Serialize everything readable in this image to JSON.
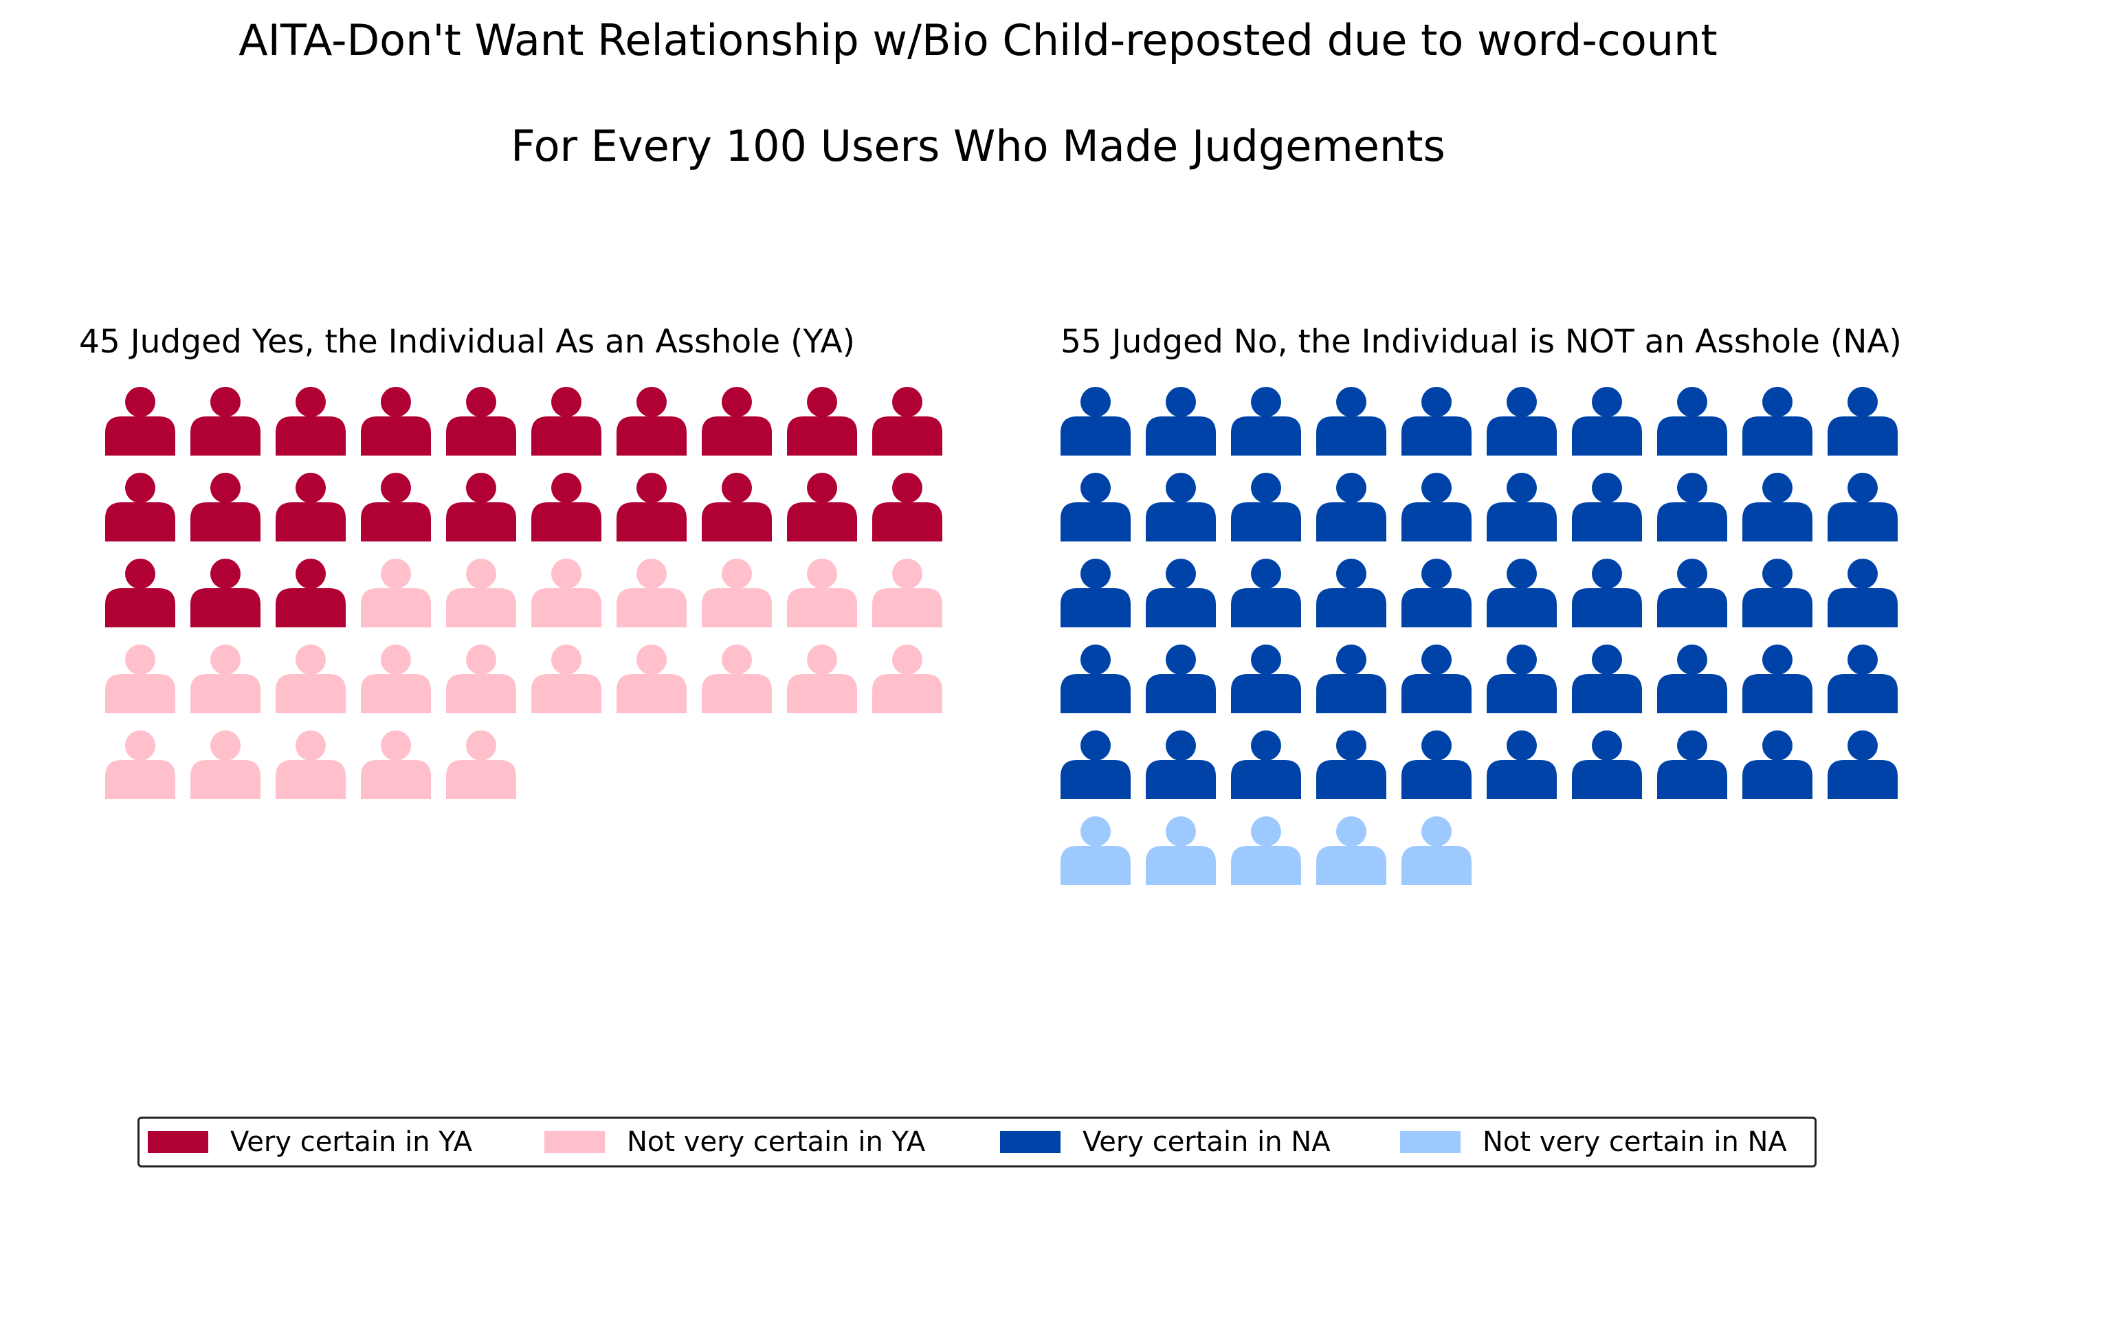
{
  "chart_data": {
    "type": "waffle",
    "title": "AITA-Don't Want Relationship w/Bio Child-reposted due to word-count",
    "subtitle": "For Every 100 Users Who Made Judgements",
    "total_users": 100,
    "icons_per_row": 10,
    "icon": "person-icon",
    "panels": [
      {
        "key": "YA",
        "title": "45 Judged Yes, the Individual As an Asshole (YA)",
        "total": 45,
        "segments": [
          {
            "name": "Very certain in YA",
            "count": 23,
            "color": "#b10034"
          },
          {
            "name": "Not very certain in YA",
            "count": 22,
            "color": "#ffc0cb"
          }
        ]
      },
      {
        "key": "NA",
        "title": "55 Judged No, the Individual is NOT an Asshole (NA)",
        "total": 55,
        "segments": [
          {
            "name": "Very certain in NA",
            "count": 50,
            "color": "#0043a8"
          },
          {
            "name": "Not very certain in NA",
            "count": 5,
            "color": "#9dc9ff"
          }
        ]
      }
    ],
    "legend": {
      "position": "bottom",
      "items": [
        {
          "label": "Very certain in YA",
          "color": "#b10034"
        },
        {
          "label": "Not very certain in YA",
          "color": "#ffc0cb"
        },
        {
          "label": "Very certain in NA",
          "color": "#0043a8"
        },
        {
          "label": "Not very certain in NA",
          "color": "#9dc9ff"
        }
      ]
    }
  }
}
